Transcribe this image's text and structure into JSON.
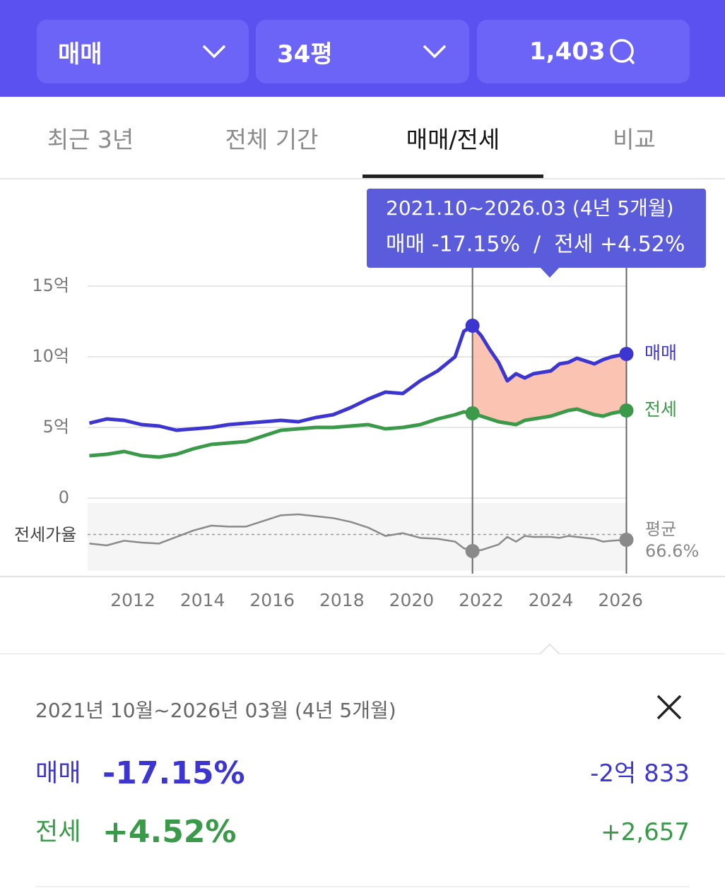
{
  "header": {
    "buttons": [
      {
        "label": "매매"
      },
      {
        "label": "34평"
      },
      {
        "label": "1,403"
      }
    ]
  },
  "tabs": {
    "items": [
      "최근 3년",
      "전체 기간",
      "매매/전세",
      "비교"
    ],
    "active": 2
  },
  "chart_data": {
    "type": "line",
    "x": [
      2010.75,
      2011.25,
      2011.75,
      2012.25,
      2012.75,
      2013.25,
      2013.75,
      2014.25,
      2014.75,
      2015.25,
      2015.75,
      2016.25,
      2016.75,
      2017.25,
      2017.75,
      2018.25,
      2018.75,
      2019.25,
      2019.75,
      2020.25,
      2020.75,
      2021.25,
      2021.5,
      2021.75,
      2022.0,
      2022.25,
      2022.5,
      2022.75,
      2023.0,
      2023.25,
      2023.5,
      2023.75,
      2024.0,
      2024.25,
      2024.5,
      2024.75,
      2025.0,
      2025.25,
      2025.5,
      2025.75,
      2026.17
    ],
    "series": [
      {
        "name": "매매",
        "color": "#3d35d0",
        "values": [
          5.3,
          5.6,
          5.5,
          5.2,
          5.1,
          4.8,
          4.9,
          5.0,
          5.2,
          5.3,
          5.4,
          5.5,
          5.4,
          5.7,
          5.9,
          6.4,
          7.0,
          7.5,
          7.4,
          8.3,
          9.0,
          10.0,
          11.8,
          12.2,
          11.5,
          10.5,
          9.6,
          8.3,
          8.8,
          8.5,
          8.8,
          8.9,
          9.0,
          9.5,
          9.6,
          9.9,
          9.7,
          9.5,
          9.8,
          10.0,
          10.2
        ]
      },
      {
        "name": "전세",
        "color": "#3a9a4a",
        "values": [
          3.0,
          3.1,
          3.3,
          3.0,
          2.9,
          3.1,
          3.5,
          3.8,
          3.9,
          4.0,
          4.4,
          4.8,
          4.9,
          5.0,
          5.0,
          5.1,
          5.2,
          4.9,
          5.0,
          5.2,
          5.6,
          5.9,
          6.1,
          6.0,
          5.8,
          5.6,
          5.4,
          5.3,
          5.2,
          5.5,
          5.6,
          5.7,
          5.8,
          6.0,
          6.2,
          6.3,
          6.1,
          5.9,
          5.8,
          6.0,
          6.2
        ]
      }
    ],
    "xlim": [
      2010.7,
      2026.18
    ],
    "xticks": [
      2012,
      2014,
      2016,
      2018,
      2020,
      2022,
      2024,
      2026
    ],
    "ylim": [
      0,
      15
    ],
    "yticks": [
      0,
      {
        "value": 5,
        "label": "5억"
      },
      {
        "value": 10,
        "label": "10억"
      },
      {
        "value": 15,
        "label": "15억"
      }
    ],
    "grid": true,
    "selection": {
      "range": [
        2021.75,
        2026.17
      ],
      "color": "#f9b9a4"
    },
    "tooltip": {
      "period": "2021.10~2026.03 (4년 5개월)",
      "change": "매매 -17.15%  /  전세 +4.52%",
      "color": "#5a5cdc"
    },
    "ratio": {
      "label": "전세가율",
      "color": "#8a8a8a",
      "ylim": [
        28,
        100
      ],
      "values": [
        57,
        55,
        60,
        58,
        57,
        64,
        71,
        76,
        75,
        75,
        81,
        87,
        88,
        86,
        84,
        80,
        74,
        65,
        68,
        63,
        62,
        59,
        52,
        49,
        50,
        53,
        56,
        64,
        59,
        65,
        64,
        64,
        64,
        63,
        65,
        64,
        63,
        62,
        59,
        60,
        61
      ],
      "average": {
        "name": "평균",
        "value": 66.6,
        "label": "66.6%"
      }
    }
  },
  "summary": {
    "period": "2021년 10월~2026년 03월 (4년 5개월)",
    "rows": [
      {
        "name": "매매",
        "change": "-17.15%",
        "amount": "-2억 833"
      },
      {
        "name": "전세",
        "change": "+4.52%",
        "amount": "+2,657"
      }
    ]
  }
}
